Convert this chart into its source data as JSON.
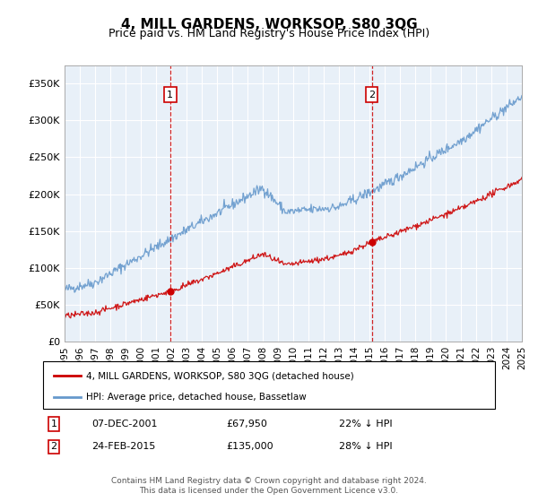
{
  "title": "4, MILL GARDENS, WORKSOP, S80 3QG",
  "subtitle": "Price paid vs. HM Land Registry's House Price Index (HPI)",
  "legend_line1": "4, MILL GARDENS, WORKSOP, S80 3QG (detached house)",
  "legend_line2": "HPI: Average price, detached house, Bassetlaw",
  "footnote": "Contains HM Land Registry data © Crown copyright and database right 2024.\nThis data is licensed under the Open Government Licence v3.0.",
  "sale1_label": "1",
  "sale1_date": "07-DEC-2001",
  "sale1_price": "£67,950",
  "sale1_pct": "22% ↓ HPI",
  "sale2_label": "2",
  "sale2_date": "24-FEB-2015",
  "sale2_price": "£135,000",
  "sale2_pct": "28% ↓ HPI",
  "hpi_color": "#6699cc",
  "price_color": "#cc0000",
  "sale1_year": 2001.93,
  "sale1_value": 67950,
  "sale2_year": 2015.15,
  "sale2_value": 135000,
  "xmin": 1995,
  "xmax": 2025,
  "ymin": 0,
  "ymax": 375000,
  "yticks": [
    0,
    50000,
    100000,
    150000,
    200000,
    250000,
    300000,
    350000
  ],
  "ytick_labels": [
    "£0",
    "£50K",
    "£100K",
    "£150K",
    "£200K",
    "£250K",
    "£300K",
    "£350K"
  ],
  "xtick_years": [
    1995,
    1996,
    1997,
    1998,
    1999,
    2000,
    2001,
    2002,
    2003,
    2004,
    2005,
    2006,
    2007,
    2008,
    2009,
    2010,
    2011,
    2012,
    2013,
    2014,
    2015,
    2016,
    2017,
    2018,
    2019,
    2020,
    2021,
    2022,
    2023,
    2024,
    2025
  ],
  "bg_color": "#e8f0f8",
  "grid_color": "#ffffff"
}
